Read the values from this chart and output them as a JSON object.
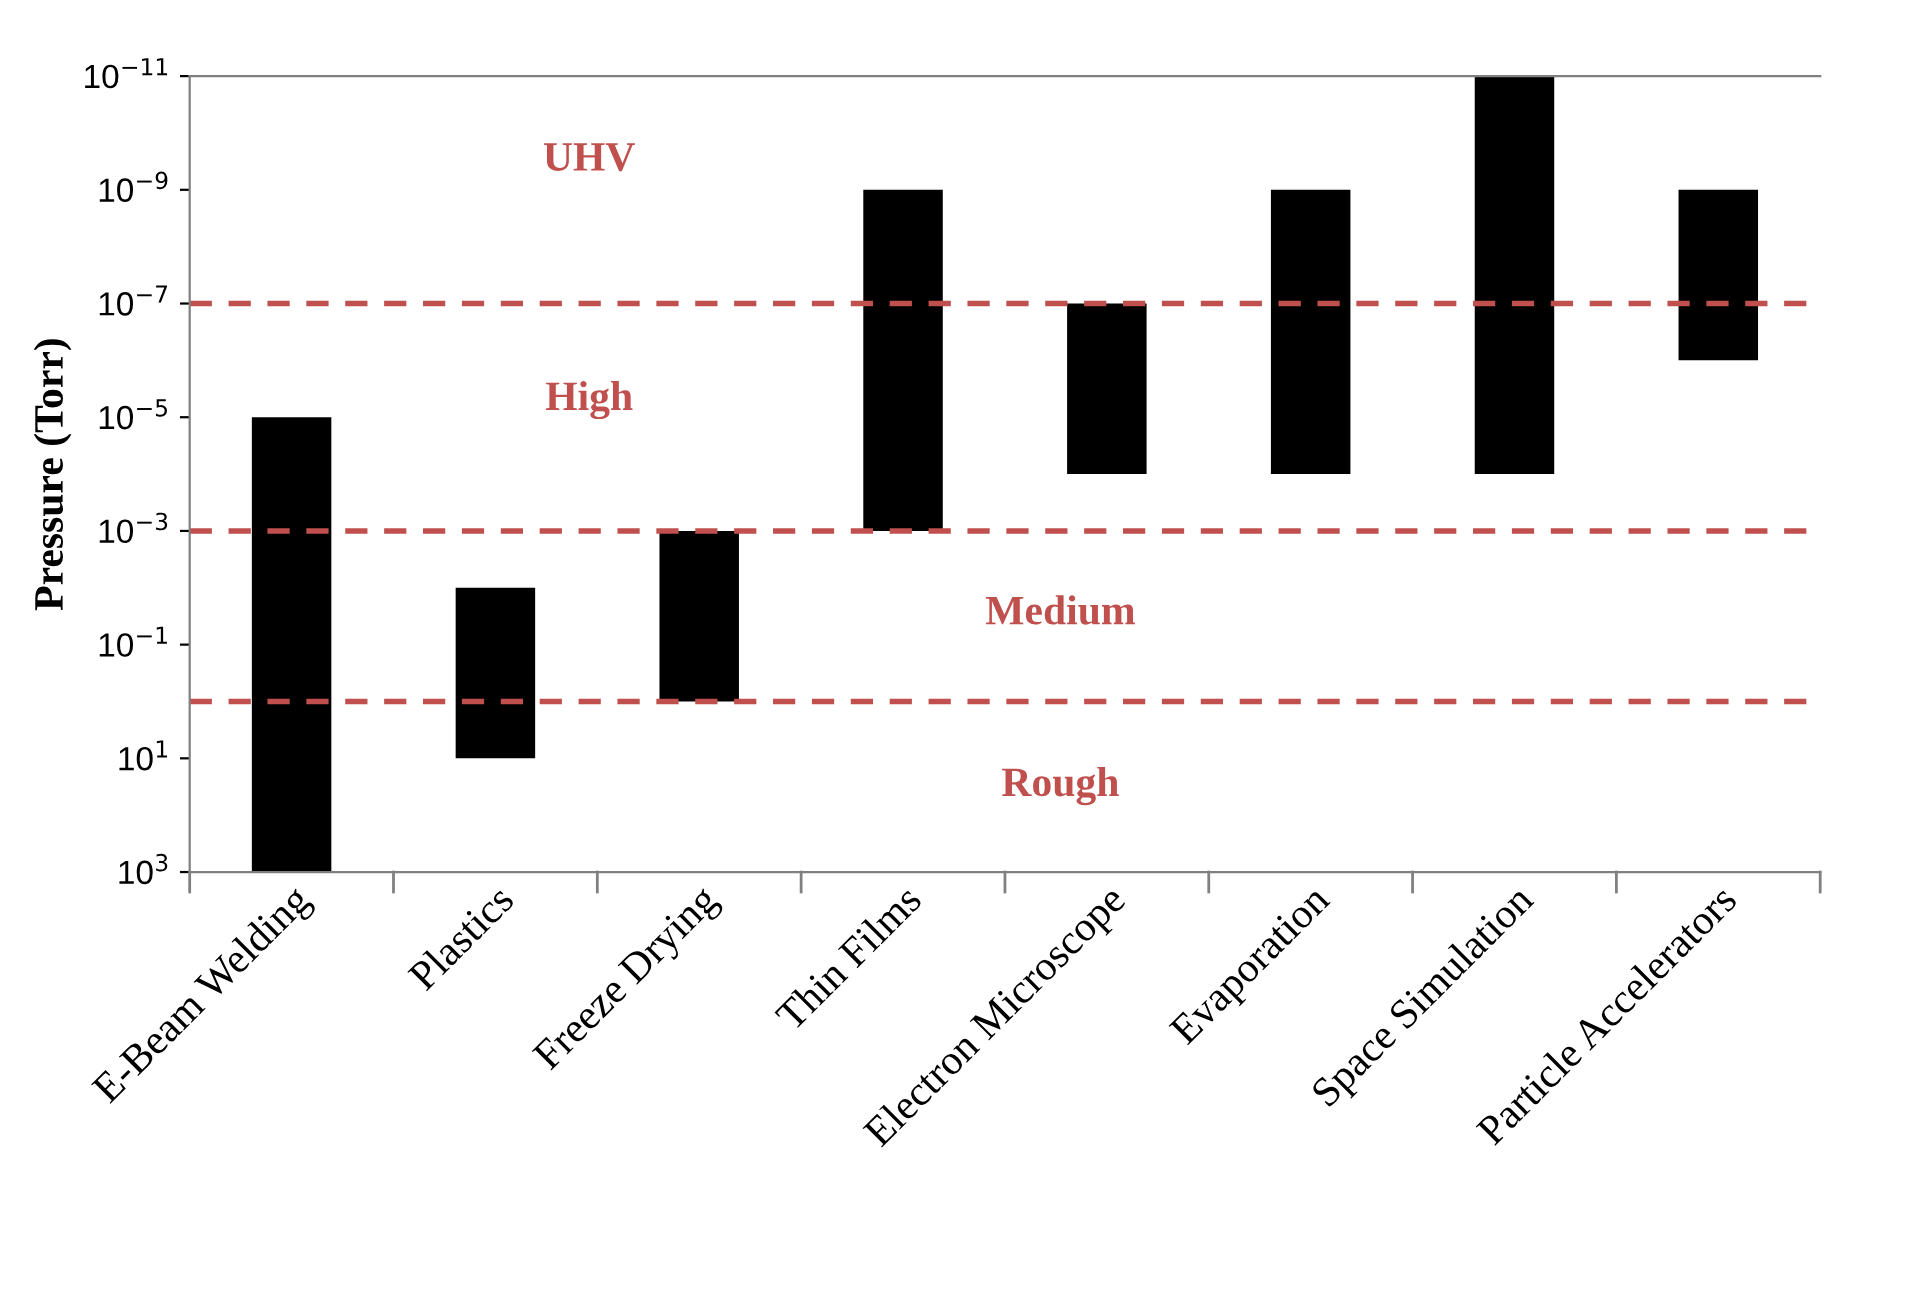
{
  "chart_data": {
    "type": "bar",
    "ylabel": "Pressure (Torr)",
    "categories": [
      "E-Beam Welding",
      "Plastics",
      "Freeze Drying",
      "Thin Films",
      "Electron Microscope",
      "Evaporation",
      "Space Simulation",
      "Particle Accelerators"
    ],
    "base": [
      1000,
      10,
      1,
      0.001,
      0.0001,
      0.0001,
      0.0001,
      1e-06
    ],
    "values": [
      -999.99999,
      -9.99,
      -0.999,
      -0.000999999,
      -9.99e-05,
      -9.9999e-05,
      -9.999999999e-05,
      -9.99e-07
    ],
    "color": "#000000",
    "log": true,
    "ylim": [
      1000,
      1e-11
    ],
    "yticks": [
      {
        "value": 1000,
        "label": "10$^{3}$"
      },
      {
        "value": 10,
        "label": "10$^{1}$"
      },
      {
        "value": 0.1,
        "label": "10$^{−1}$"
      },
      {
        "value": 0.001,
        "label": "10$^{−3}$"
      },
      {
        "value": 1e-05,
        "label": "10$^{−5}$"
      },
      {
        "value": 1e-07,
        "label": "10$^{−7}$"
      },
      {
        "value": 1e-09,
        "label": "10$^{−9}$"
      },
      {
        "value": 1e-11,
        "label": "10$^{−11}$"
      }
    ],
    "ref_lines": [
      {
        "axis": "y",
        "value": 1e-07,
        "color": "#c0504d",
        "line_style": "dashed"
      },
      {
        "axis": "y",
        "value": 0.001,
        "color": "#c0504d",
        "line_style": "dashed"
      },
      {
        "axis": "y",
        "value": 1,
        "color": "#c0504d",
        "line_style": "dashed"
      }
    ],
    "annotations": [
      "UHV",
      "High",
      "Medium",
      "Rough"
    ],
    "grid": false,
    "legend": false
  }
}
